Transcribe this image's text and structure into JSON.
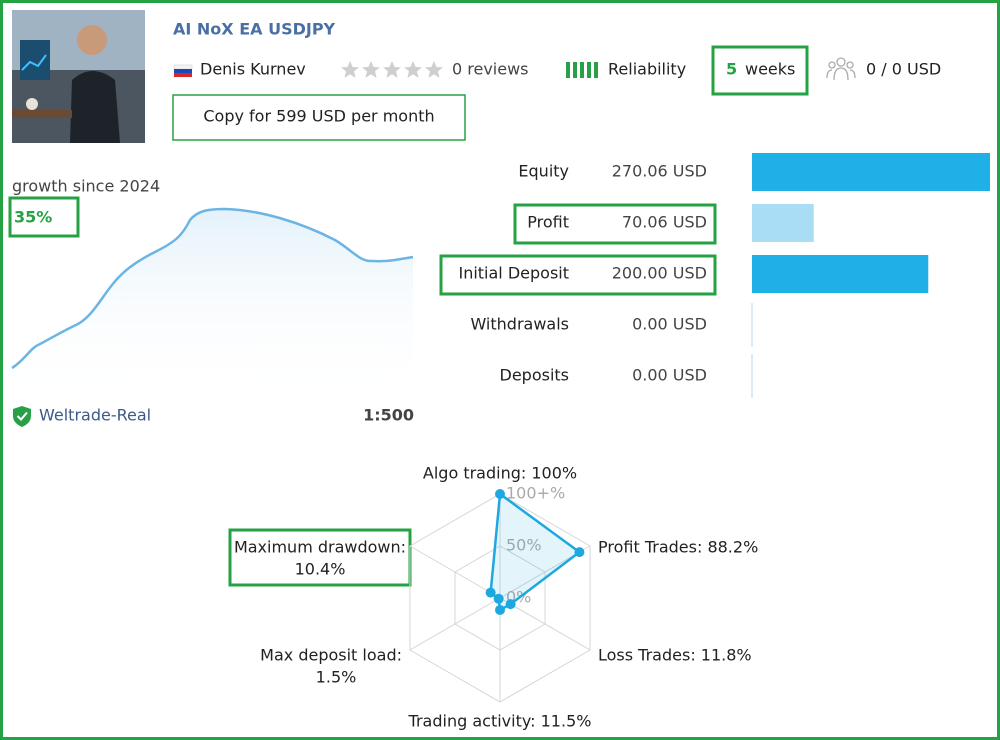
{
  "header": {
    "title": "AI NoX EA USDJPY",
    "author": "Denis Kurnev",
    "reviews": "0 reviews",
    "reliability": "Reliability",
    "weeks_value": "5",
    "weeks_unit": "weeks",
    "subscribers": "0 / 0 USD",
    "copy_button": "Copy for 599 USD per month"
  },
  "growth": {
    "label": "growth since 2024",
    "value": "35%"
  },
  "stats": {
    "labels": [
      "Equity",
      "Profit",
      "Initial Deposit",
      "Withdrawals",
      "Deposits"
    ],
    "values": [
      270.06,
      70.06,
      200.0,
      0.0,
      0.0
    ],
    "value_labels": [
      "270.06 USD",
      "70.06 USD",
      "200.00 USD",
      "0.00 USD",
      "0.00 USD"
    ],
    "colors": [
      "#1fb0e8",
      "#a9ddf5",
      "#1fb0e8",
      "#1fb0e8",
      "#1fb0e8"
    ]
  },
  "account": {
    "broker": "Weltrade-Real",
    "leverage": "1:500"
  },
  "chart_data": {
    "type": "radar",
    "labels": [
      [
        "Algo trading: 100%"
      ],
      [
        "Profit Trades: 88.2%"
      ],
      [
        "Loss Trades: 11.8%"
      ],
      [
        "Trading activity: 11.5%"
      ],
      [
        "Max deposit load:",
        "1.5%"
      ],
      [
        "Maximum drawdown:",
        "10.4%"
      ]
    ],
    "values": [
      100,
      88.2,
      11.8,
      11.5,
      1.5,
      10.4
    ],
    "rlim": [
      0,
      100
    ],
    "rticks": [
      {
        "value": 0,
        "label": "0%"
      },
      {
        "value": 50,
        "label": "50%"
      },
      {
        "value": 100,
        "label": "100+%"
      }
    ],
    "color": "#1fa8e0"
  }
}
